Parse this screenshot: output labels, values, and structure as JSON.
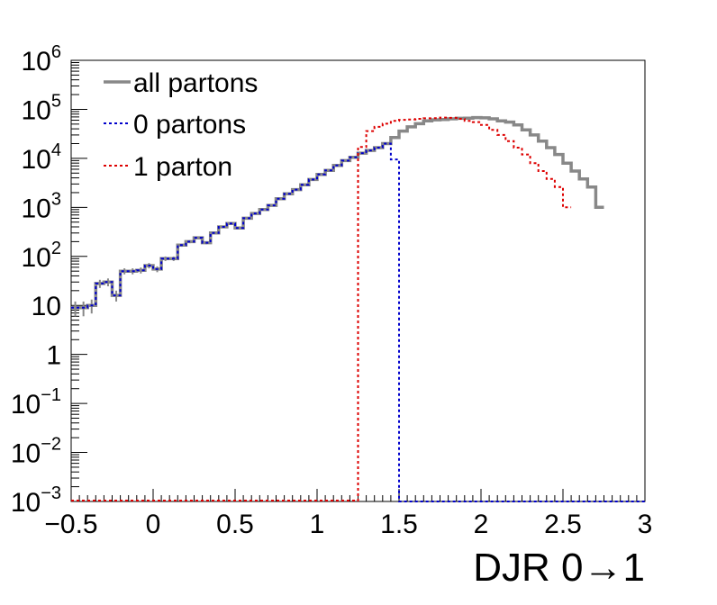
{
  "chart_data": {
    "type": "line",
    "title": "",
    "xlabel": "DJR 0→1",
    "ylabel": "",
    "xlim": [
      -0.5,
      3.0
    ],
    "ylim": [
      0.001,
      1000000
    ],
    "yscale": "log",
    "grid": false,
    "legend_position": "top-left",
    "x_ticks": [
      "−0.5",
      "0",
      "0.5",
      "1",
      "1.5",
      "2",
      "2.5",
      "3"
    ],
    "x_tick_values": [
      -0.5,
      0,
      0.5,
      1,
      1.5,
      2,
      2.5,
      3
    ],
    "y_ticks": [
      {
        "value": 0.001,
        "base": "10",
        "exp": "−3"
      },
      {
        "value": 0.01,
        "base": "10",
        "exp": "−2"
      },
      {
        "value": 0.1,
        "base": "10",
        "exp": "−1"
      },
      {
        "value": 1,
        "base": "1",
        "exp": ""
      },
      {
        "value": 10,
        "base": "10",
        "exp": ""
      },
      {
        "value": 100,
        "base": "10",
        "exp": "2"
      },
      {
        "value": 1000,
        "base": "10",
        "exp": "3"
      },
      {
        "value": 10000,
        "base": "10",
        "exp": "4"
      },
      {
        "value": 100000,
        "base": "10",
        "exp": "5"
      },
      {
        "value": 1000000,
        "base": "10",
        "exp": "6"
      }
    ],
    "bin_width": 0.05,
    "series": [
      {
        "name": "all partons",
        "color": "#888888",
        "style": "solid",
        "x_start": -0.5,
        "values": [
          9,
          9,
          10,
          28,
          30,
          16,
          50,
          50,
          52,
          65,
          55,
          90,
          90,
          170,
          200,
          240,
          190,
          300,
          400,
          470,
          380,
          600,
          750,
          900,
          1100,
          1500,
          1900,
          2300,
          2900,
          3700,
          4700,
          5700,
          7200,
          9000,
          10500,
          12800,
          14500,
          16500,
          20000,
          26500,
          36000,
          44000,
          51000,
          58000,
          61000,
          62000,
          64000,
          65500,
          66000,
          68000,
          67000,
          64000,
          58000,
          55000,
          48000,
          38000,
          30000,
          22500,
          16500,
          12000,
          8000,
          5500,
          3800,
          2600,
          1000
        ]
      },
      {
        "name": "0 partons",
        "color": "#0000cc",
        "style": "dotted",
        "x_start": -0.5,
        "values": [
          9,
          9,
          10,
          28,
          30,
          16,
          50,
          50,
          52,
          65,
          55,
          90,
          90,
          170,
          200,
          240,
          190,
          300,
          400,
          470,
          380,
          600,
          750,
          900,
          1100,
          1500,
          1900,
          2300,
          2900,
          3700,
          4700,
          5700,
          7200,
          9000,
          10500,
          12800,
          14500,
          16500,
          20000,
          9500
        ]
      },
      {
        "name": "1 parton",
        "color": "#dd0000",
        "style": "dotted",
        "x_start": 1.25,
        "values": [
          17000,
          36000,
          44000,
          51000,
          58000,
          61000,
          62000,
          64000,
          65500,
          66000,
          68000,
          67000,
          64000,
          58000,
          55000,
          48000,
          38000,
          30000,
          22500,
          16500,
          12000,
          8000,
          5500,
          3800,
          2600,
          1000
        ]
      }
    ]
  }
}
